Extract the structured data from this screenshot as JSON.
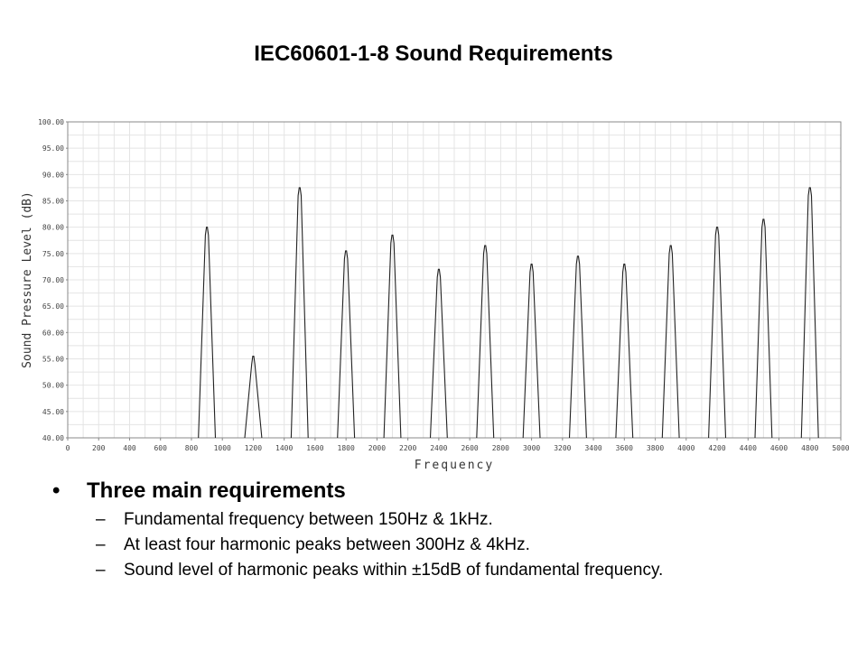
{
  "slide": {
    "title": "IEC60601-1-8 Sound Requirements"
  },
  "bullets": {
    "marker": "•",
    "heading": "Three main requirements",
    "sub_marker": "–",
    "items": [
      "Fundamental frequency between 150Hz & 1kHz.",
      "At least four harmonic peaks between 300Hz & 4kHz.",
      "Sound level of harmonic peaks within ±15dB of fundamental frequency."
    ]
  },
  "chart_data": {
    "type": "line",
    "title": "",
    "xlabel": "Frequency",
    "ylabel": "Sound Pressure Level (dB)",
    "xlim": [
      0,
      5000
    ],
    "ylim": [
      40,
      100
    ],
    "grid": true,
    "line_color": "#222222",
    "x_ticks": [
      0,
      200,
      400,
      600,
      800,
      1000,
      1200,
      1400,
      1600,
      1800,
      2000,
      2200,
      2400,
      2600,
      2800,
      3000,
      3200,
      3400,
      3600,
      3800,
      4000,
      4200,
      4400,
      4600,
      4800,
      5000
    ],
    "y_ticks": [
      "40.00",
      "45.00",
      "50.00",
      "55.00",
      "60.00",
      "65.00",
      "70.00",
      "75.00",
      "80.00",
      "85.00",
      "90.00",
      "95.00",
      "100.00"
    ],
    "peaks": [
      {
        "freq": 900,
        "level": 80
      },
      {
        "freq": 1200,
        "level": 55.5
      },
      {
        "freq": 1500,
        "level": 87.5
      },
      {
        "freq": 1800,
        "level": 75.5
      },
      {
        "freq": 2100,
        "level": 78.5
      },
      {
        "freq": 2400,
        "level": 72
      },
      {
        "freq": 2700,
        "level": 76.5
      },
      {
        "freq": 3000,
        "level": 73
      },
      {
        "freq": 3300,
        "level": 74.5
      },
      {
        "freq": 3600,
        "level": 73
      },
      {
        "freq": 3900,
        "level": 76.5
      },
      {
        "freq": 4200,
        "level": 80
      },
      {
        "freq": 4500,
        "level": 81.5
      },
      {
        "freq": 4800,
        "level": 87.5
      }
    ]
  }
}
